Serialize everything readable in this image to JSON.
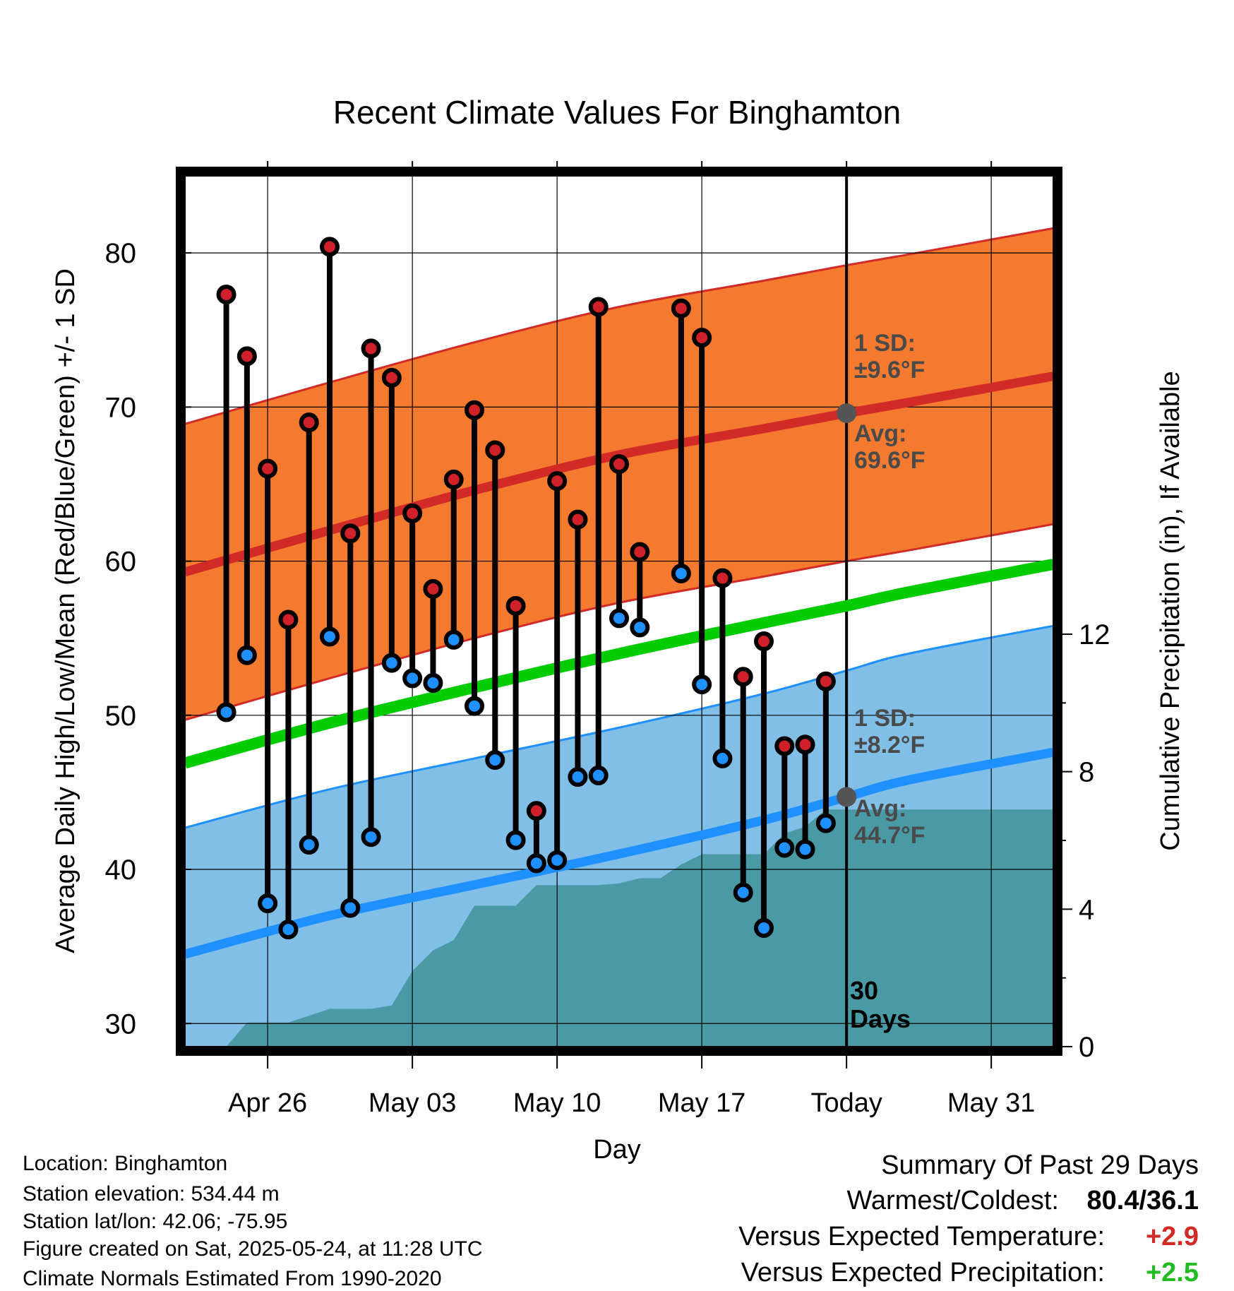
{
  "chart_data": {
    "type": "line",
    "title": "Recent Climate Values For Binghamton",
    "xlabel": "Day",
    "ylabel_left": "Average Daily High/Low/Mean (Red/Blue/Green) +/- 1 SD",
    "ylabel_right": "Cumulative Precipitation (in), If Available",
    "x_range": [
      "2025-04-22",
      "2025-06-03"
    ],
    "ylim_left": [
      28.5,
      85
    ],
    "ylim_right": [
      0,
      12
    ],
    "x_ticks": [
      {
        "date": "2025-04-26",
        "label": "Apr 26"
      },
      {
        "date": "2025-05-03",
        "label": "May 03"
      },
      {
        "date": "2025-05-10",
        "label": "May 10"
      },
      {
        "date": "2025-05-17",
        "label": "May 17"
      },
      {
        "date": "2025-05-24",
        "label": "Today"
      },
      {
        "date": "2025-05-31",
        "label": "May 31"
      }
    ],
    "y_ticks_left": [
      30,
      40,
      50,
      60,
      70,
      80
    ],
    "y_ticks_right": [
      0,
      4,
      8,
      12
    ],
    "today": "2025-05-24",
    "today_label": [
      "30",
      "Days"
    ],
    "daily_obs": [
      {
        "date": "2025-04-24",
        "high": 77.3,
        "low": 50.2
      },
      {
        "date": "2025-04-25",
        "high": 73.3,
        "low": 53.9
      },
      {
        "date": "2025-04-26",
        "high": 66.0,
        "low": 37.8
      },
      {
        "date": "2025-04-27",
        "high": 56.2,
        "low": 36.1
      },
      {
        "date": "2025-04-28",
        "high": 69.0,
        "low": 41.6
      },
      {
        "date": "2025-04-29",
        "high": 80.4,
        "low": 55.1
      },
      {
        "date": "2025-04-30",
        "high": 61.8,
        "low": 37.5
      },
      {
        "date": "2025-05-01",
        "high": 73.8,
        "low": 42.1
      },
      {
        "date": "2025-05-02",
        "high": 71.9,
        "low": 53.4
      },
      {
        "date": "2025-05-03",
        "high": 63.1,
        "low": 52.4
      },
      {
        "date": "2025-05-04",
        "high": 58.2,
        "low": 52.1
      },
      {
        "date": "2025-05-05",
        "high": 65.3,
        "low": 54.9
      },
      {
        "date": "2025-05-06",
        "high": 69.8,
        "low": 50.6
      },
      {
        "date": "2025-05-07",
        "high": 67.2,
        "low": 47.1
      },
      {
        "date": "2025-05-08",
        "high": 57.1,
        "low": 41.9
      },
      {
        "date": "2025-05-09",
        "high": 43.8,
        "low": 40.4
      },
      {
        "date": "2025-05-10",
        "high": 65.2,
        "low": 40.6
      },
      {
        "date": "2025-05-11",
        "high": 62.7,
        "low": 46.0
      },
      {
        "date": "2025-05-12",
        "high": 76.5,
        "low": 46.1
      },
      {
        "date": "2025-05-13",
        "high": 66.3,
        "low": 56.3
      },
      {
        "date": "2025-05-14",
        "high": 60.6,
        "low": 55.7
      },
      {
        "date": "2025-05-16",
        "high": 76.4,
        "low": 59.2
      },
      {
        "date": "2025-05-17",
        "high": 74.5,
        "low": 52.0
      },
      {
        "date": "2025-05-18",
        "high": 58.9,
        "low": 47.2
      },
      {
        "date": "2025-05-19",
        "high": 52.5,
        "low": 38.5
      },
      {
        "date": "2025-05-20",
        "high": 54.8,
        "low": 36.2
      },
      {
        "date": "2025-05-21",
        "high": 48.0,
        "low": 41.4
      },
      {
        "date": "2025-05-22",
        "high": 48.1,
        "low": 41.3
      },
      {
        "date": "2025-05-23",
        "high": 52.2,
        "low": 43.0
      }
    ],
    "normal_high": {
      "dates": [
        "2025-04-22",
        "2025-04-29",
        "2025-05-06",
        "2025-05-13",
        "2025-05-20",
        "2025-05-24",
        "2025-05-27",
        "2025-06-03"
      ],
      "values": [
        59.3,
        62.0,
        64.6,
        66.9,
        68.6,
        69.6,
        70.3,
        72.0
      ]
    },
    "high_sd": 9.6,
    "normal_low": {
      "dates": [
        "2025-04-22",
        "2025-04-29",
        "2025-05-06",
        "2025-05-13",
        "2025-05-20",
        "2025-05-24",
        "2025-05-27",
        "2025-06-03"
      ],
      "values": [
        34.5,
        37.0,
        39.0,
        41.0,
        43.2,
        44.7,
        45.8,
        47.6
      ]
    },
    "low_sd": 8.2,
    "normal_mean": {
      "dates": [
        "2025-04-22",
        "2025-04-29",
        "2025-05-06",
        "2025-05-13",
        "2025-05-20",
        "2025-05-24",
        "2025-05-27",
        "2025-06-03"
      ],
      "values": [
        46.9,
        49.5,
        51.8,
        54.0,
        56.0,
        57.1,
        58.0,
        59.8
      ]
    },
    "cumulative_precip": {
      "dates": [
        "2025-04-22",
        "2025-04-24",
        "2025-04-25",
        "2025-04-26",
        "2025-04-27",
        "2025-04-28",
        "2025-04-29",
        "2025-04-30",
        "2025-05-01",
        "2025-05-02",
        "2025-05-03",
        "2025-05-04",
        "2025-05-05",
        "2025-05-06",
        "2025-05-07",
        "2025-05-08",
        "2025-05-09",
        "2025-05-10",
        "2025-05-11",
        "2025-05-12",
        "2025-05-13",
        "2025-05-14",
        "2025-05-15",
        "2025-05-16",
        "2025-05-17",
        "2025-05-18",
        "2025-05-19",
        "2025-05-20",
        "2025-05-21",
        "2025-05-22",
        "2025-05-23",
        "2025-06-03"
      ],
      "values": [
        0,
        0,
        0.7,
        0.7,
        0.7,
        0.9,
        1.1,
        1.1,
        1.1,
        1.2,
        2.2,
        2.8,
        3.1,
        4.1,
        4.1,
        4.1,
        4.7,
        4.7,
        4.7,
        4.7,
        4.75,
        4.9,
        4.9,
        5.3,
        5.6,
        5.6,
        5.6,
        5.6,
        6.2,
        6.4,
        6.9,
        6.9
      ]
    },
    "annotations": {
      "high_sd_label": [
        "1 SD:",
        "±9.6°F"
      ],
      "high_avg_label": [
        "Avg:",
        "69.6°F"
      ],
      "low_sd_label": [
        "1 SD:",
        "±8.2°F"
      ],
      "low_avg_label": [
        "Avg:",
        "44.7°F"
      ]
    },
    "colors": {
      "high_band": "#f47a2f",
      "high_line": "#d12a27",
      "low_band": "#81bfe6",
      "low_line": "#1e90ff",
      "mean_line": "#00cc00",
      "precip": "#4a9aa5",
      "high_dot": "#d0202a",
      "low_dot": "#1e90ff",
      "annotation": "#4a4a4a"
    }
  },
  "footer": {
    "location": "Location: Binghamton",
    "elevation": "Station elevation: 534.44 m",
    "latlon": "Station lat/lon: 42.06; -75.95",
    "created": "Figure created on Sat, 2025-05-24, at 11:28 UTC",
    "normals": "Climate Normals Estimated From 1990-2020"
  },
  "summary": {
    "title": "Summary Of Past 29 Days",
    "warm_cold_label": "Warmest/Coldest:",
    "warm_cold_value": "80.4/36.1",
    "temp_label": "Versus Expected Temperature:",
    "temp_value": "+2.9",
    "temp_color": "#d12a27",
    "precip_label": "Versus Expected Precipitation:",
    "precip_value": "+2.5",
    "precip_color": "#22bb22"
  }
}
